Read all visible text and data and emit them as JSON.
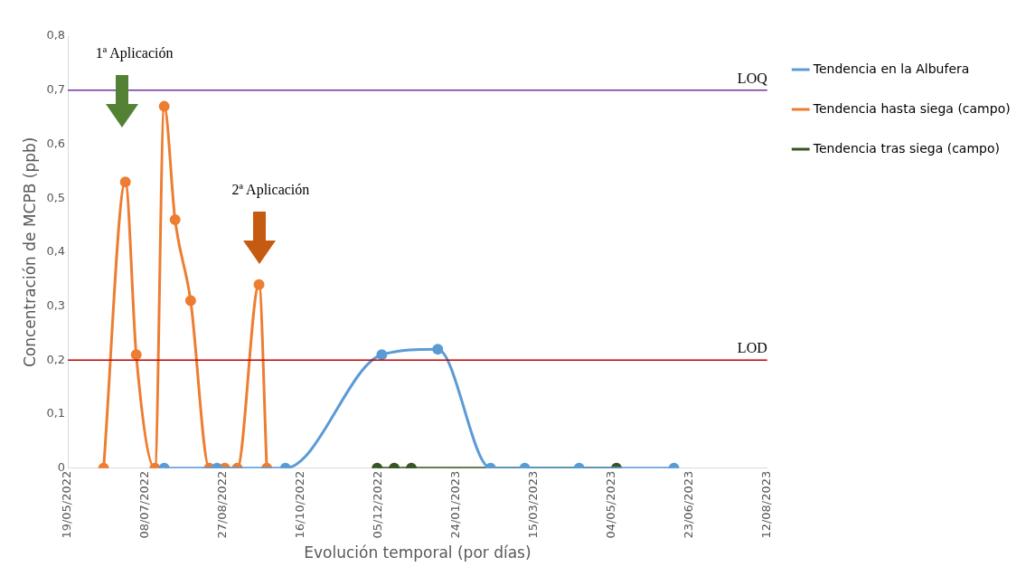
{
  "chart_data": {
    "type": "line",
    "xlabel": "Evolución temporal (por días)",
    "ylabel": "Concentración de MCPB (ppb)",
    "series": [
      {
        "name": "Tendencia en la Albufera",
        "color": "#5b9bd5",
        "x": [
          "2022-07-20",
          "2022-08-23",
          "2022-10-06",
          "2022-12-07",
          "2023-01-12",
          "2023-02-15",
          "2023-03-09",
          "2023-04-13",
          "2023-06-13"
        ],
        "values": [
          0,
          0,
          0,
          0.21,
          0.22,
          0,
          0,
          0,
          0
        ]
      },
      {
        "name": "Tendencia hasta siega (campo)",
        "color": "#ed7d31",
        "x": [
          "2022-06-11",
          "2022-06-25",
          "2022-07-02",
          "2022-07-14",
          "2022-07-20",
          "2022-07-27",
          "2022-08-06",
          "2022-08-18",
          "2022-08-28",
          "2022-09-05",
          "2022-09-19",
          "2022-09-24"
        ],
        "values": [
          0,
          0.53,
          0.21,
          0,
          0.67,
          0.46,
          0.31,
          0,
          0,
          0,
          0.34,
          0
        ]
      },
      {
        "name": "Tendencia tras siega (campo)",
        "color": "#375623",
        "x": [
          "2022-12-04",
          "2022-12-15",
          "2022-12-26",
          "2023-05-07"
        ],
        "values": [
          0,
          0,
          0,
          0
        ]
      }
    ],
    "xlim": [
      "2022-05-19",
      "2023-08-12"
    ],
    "xticks": [
      {
        "value": "2022-05-19",
        "label": "19/05/2022"
      },
      {
        "value": "2022-07-08",
        "label": "08/07/2022"
      },
      {
        "value": "2022-08-27",
        "label": "27/08/2022"
      },
      {
        "value": "2022-10-16",
        "label": "16/10/2022"
      },
      {
        "value": "2022-12-05",
        "label": "05/12/2022"
      },
      {
        "value": "2023-01-24",
        "label": "24/01/2023"
      },
      {
        "value": "2023-03-15",
        "label": "15/03/2023"
      },
      {
        "value": "2023-05-04",
        "label": "04/05/2023"
      },
      {
        "value": "2023-06-23",
        "label": "23/06/2023"
      },
      {
        "value": "2023-08-12",
        "label": "12/08/2023"
      }
    ],
    "ylim": [
      0,
      0.8
    ],
    "yticks": [
      0,
      {
        "value": 0.1,
        "label": "0,1"
      },
      {
        "value": 0.2,
        "label": "0,2"
      },
      {
        "value": 0.3,
        "label": "0,3"
      },
      {
        "value": 0.4,
        "label": "0,4"
      },
      {
        "value": 0.5,
        "label": "0,5"
      },
      {
        "value": 0.6,
        "label": "0,6"
      },
      {
        "value": 0.7,
        "label": "0,7"
      },
      {
        "value": 0.8,
        "label": "0,8"
      }
    ],
    "ref_lines": [
      {
        "axis": "y",
        "value": 0.7,
        "label": "LOQ",
        "color": "#7030a0"
      },
      {
        "axis": "y",
        "value": 0.2,
        "label": "LOD",
        "color": "#c00000"
      }
    ],
    "annotations": [
      "1ª Aplicación",
      "2ª Aplicación"
    ],
    "legend": "right",
    "marker": "circle",
    "line_style": "solid",
    "grid": false
  }
}
